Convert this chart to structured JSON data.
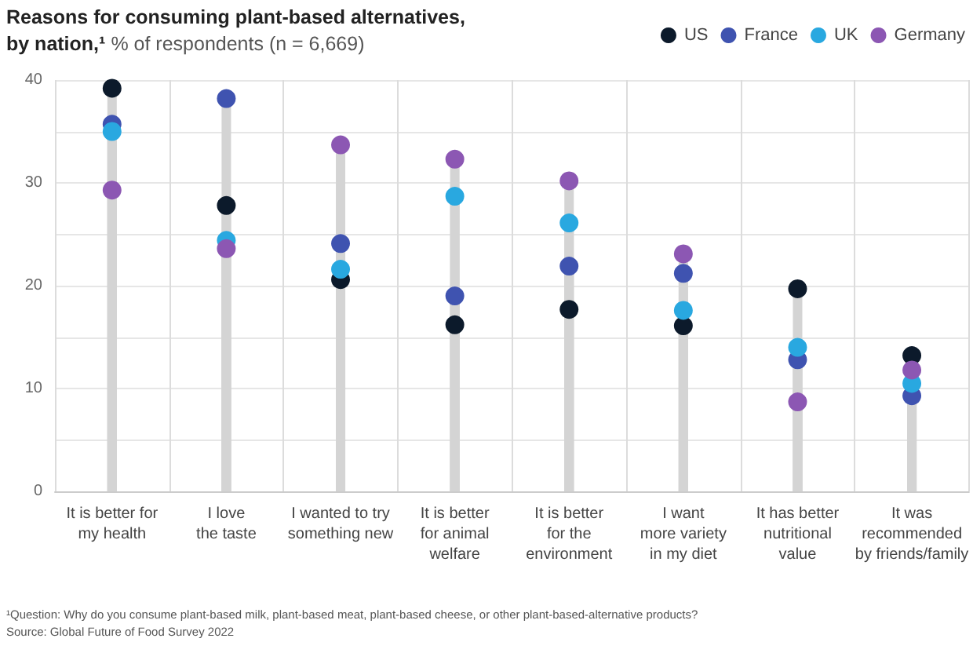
{
  "chart_data": {
    "type": "lollipop",
    "title": "Reasons for consuming plant-based alternatives, by nation,¹",
    "subtitle": "% of respondents (n = 6,669)",
    "categories": [
      "It is better for\nmy health",
      "I love\nthe taste",
      "I wanted to try\nsomething new",
      "It is better\nfor animal\nwelfare",
      "It is better\nfor the\nenvironment",
      "I want\nmore variety\nin my diet",
      "It has better\nnutritional\nvalue",
      "It was\nrecommended\nby friends/family"
    ],
    "series": [
      {
        "name": "US",
        "color": "#0c1a2b",
        "values": [
          39.2,
          27.8,
          20.6,
          16.2,
          17.7,
          16.1,
          19.7,
          13.2
        ]
      },
      {
        "name": "France",
        "color": "#3f53b0",
        "values": [
          35.7,
          38.2,
          24.1,
          19.0,
          21.9,
          21.2,
          12.8,
          9.3
        ]
      },
      {
        "name": "UK",
        "color": "#29a8e0",
        "values": [
          35.0,
          24.4,
          21.6,
          28.7,
          26.1,
          17.6,
          14.0,
          10.5
        ]
      },
      {
        "name": "Germany",
        "color": "#8c57b3",
        "values": [
          29.3,
          23.6,
          33.7,
          32.3,
          30.2,
          23.1,
          8.7,
          11.8
        ]
      }
    ],
    "ylim": [
      0,
      40
    ],
    "yticks": [
      0,
      {
        "value": 5,
        "label": null
      },
      10,
      {
        "value": 15,
        "label": null
      },
      20,
      {
        "value": 25,
        "label": null
      },
      30,
      {
        "value": 35,
        "label": null
      },
      40
    ],
    "grid": true,
    "legend": "top right",
    "marker": "circle",
    "annotations": [
      "¹Question: Why do you consume plant-based milk, plant-based meat, plant-based cheese, or other plant-based-alternative products?",
      "Source: Global Future of Food Survey 2022"
    ]
  }
}
